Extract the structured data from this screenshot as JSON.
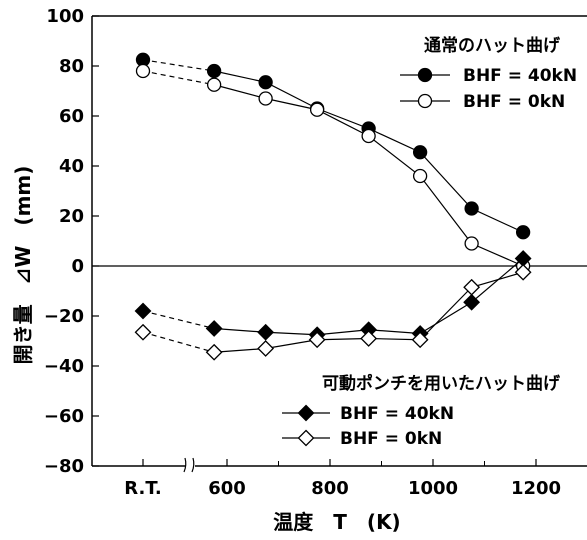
{
  "chart_data": {
    "type": "line",
    "ylabel": "開き量　⊿W　(mm)",
    "xlabel": "温度　T　(K)",
    "ylim": [
      -80,
      100
    ],
    "yticks": [
      -80,
      -60,
      -40,
      -20,
      0,
      20,
      40,
      60,
      80,
      100
    ],
    "xticks": [
      {
        "label": "R.T.",
        "value": 300
      },
      {
        "label": "600",
        "value": 600
      },
      {
        "label": "800",
        "value": 800
      },
      {
        "label": "1000",
        "value": 1000
      },
      {
        "label": "1200",
        "value": 1200
      }
    ],
    "xlim_data": [
      600,
      1300
    ],
    "axis_break": true,
    "zero_line": true,
    "groups": [
      {
        "title": "通常のハット曲げ",
        "legend_position": "top-right",
        "series": [
          {
            "name": "BHF = 40kN",
            "marker": "circle",
            "filled": true,
            "rt_value": 82.5,
            "x": [
              575,
              675,
              775,
              875,
              975,
              1075,
              1175
            ],
            "y": [
              78,
              73.5,
              63,
              55,
              45.5,
              23,
              13.5
            ]
          },
          {
            "name": "BHF = 0kN",
            "marker": "circle",
            "filled": false,
            "rt_value": 78,
            "x": [
              575,
              675,
              775,
              875,
              975,
              1075,
              1175
            ],
            "y": [
              72.5,
              67,
              62.5,
              52,
              36,
              9,
              0
            ]
          }
        ]
      },
      {
        "title": "可動ポンチを用いたハット曲げ",
        "legend_position": "bottom-right",
        "series": [
          {
            "name": "BHF = 40kN",
            "marker": "diamond",
            "filled": true,
            "rt_value": -18,
            "x": [
              575,
              675,
              775,
              875,
              975,
              1075,
              1175
            ],
            "y": [
              -25,
              -26.5,
              -27.5,
              -25.5,
              -27,
              -14.5,
              3
            ]
          },
          {
            "name": "BHF = 0kN",
            "marker": "diamond",
            "filled": false,
            "rt_value": -26.5,
            "x": [
              575,
              675,
              775,
              875,
              975,
              1075,
              1175
            ],
            "y": [
              -34.5,
              -33,
              -29.5,
              -29,
              -29.5,
              -8.5,
              -2.5
            ]
          }
        ]
      }
    ]
  }
}
